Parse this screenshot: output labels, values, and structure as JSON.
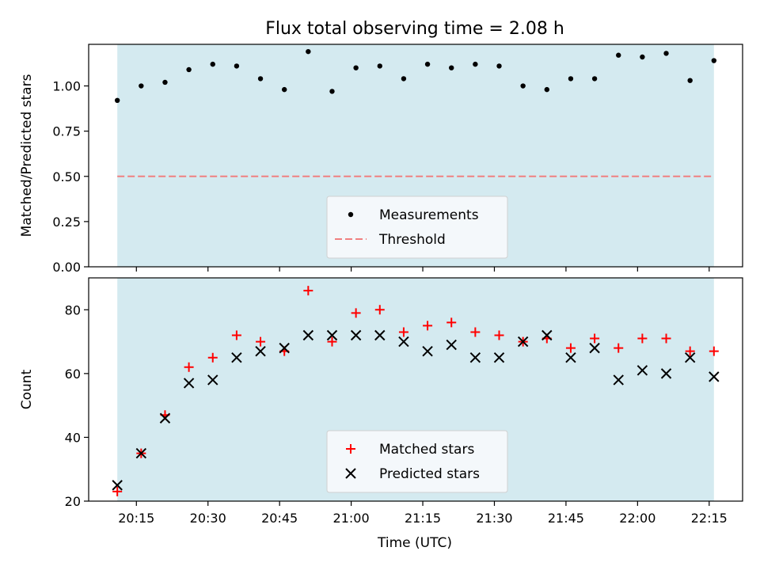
{
  "figure": {
    "title": "Flux total observing time = 2.08 h",
    "xlabel": "Time (UTC)",
    "x_ticks": [
      "20:15",
      "20:30",
      "20:45",
      "21:00",
      "21:15",
      "21:30",
      "21:45",
      "22:00",
      "22:15"
    ],
    "colors": {
      "observing_band": "#d4eaf0",
      "measurement_marker": "#000000",
      "threshold_line": "#f08080",
      "matched_marker": "#ff0000",
      "predicted_marker": "#000000"
    }
  },
  "chart_data": [
    {
      "type": "scatter",
      "ylabel": "Matched/Predicted stars",
      "x_range": [
        "20:05",
        "22:22"
      ],
      "ylim": [
        0.0,
        1.23
      ],
      "y_ticks": [
        "0.00",
        "0.25",
        "0.50",
        "0.75",
        "1.00"
      ],
      "shaded_span": [
        "20:11",
        "22:16"
      ],
      "x": [
        "20:11",
        "20:16",
        "20:21",
        "20:26",
        "20:31",
        "20:36",
        "20:41",
        "20:46",
        "20:51",
        "20:56",
        "21:01",
        "21:06",
        "21:11",
        "21:16",
        "21:21",
        "21:26",
        "21:31",
        "21:36",
        "21:41",
        "21:46",
        "21:51",
        "21:56",
        "22:01",
        "22:06",
        "22:11",
        "22:16"
      ],
      "series": [
        {
          "name": "Measurements",
          "marker": "dot",
          "values": [
            0.92,
            1.0,
            1.02,
            1.09,
            1.12,
            1.11,
            1.04,
            0.98,
            1.19,
            0.97,
            1.1,
            1.11,
            1.04,
            1.12,
            1.1,
            1.12,
            1.11,
            1.0,
            0.98,
            1.04,
            1.04,
            1.17,
            1.16,
            1.18,
            1.03,
            1.14
          ]
        }
      ],
      "threshold": {
        "name": "Threshold",
        "value": 0.5,
        "style": "dashed"
      },
      "legend_placement": "lower center"
    },
    {
      "type": "scatter",
      "ylabel": "Count",
      "x_range": [
        "20:05",
        "22:22"
      ],
      "ylim": [
        20,
        90
      ],
      "y_ticks": [
        "20",
        "40",
        "60",
        "80"
      ],
      "shaded_span": [
        "20:11",
        "22:16"
      ],
      "x": [
        "20:11",
        "20:16",
        "20:21",
        "20:26",
        "20:31",
        "20:36",
        "20:41",
        "20:46",
        "20:51",
        "20:56",
        "21:01",
        "21:06",
        "21:11",
        "21:16",
        "21:21",
        "21:26",
        "21:31",
        "21:36",
        "21:41",
        "21:46",
        "21:51",
        "21:56",
        "22:01",
        "22:06",
        "22:11",
        "22:16"
      ],
      "series": [
        {
          "name": "Matched stars",
          "marker": "plus",
          "values": [
            23,
            35,
            47,
            62,
            65,
            72,
            70,
            67,
            86,
            70,
            79,
            80,
            73,
            75,
            76,
            73,
            72,
            70,
            71,
            68,
            71,
            68,
            71,
            71,
            67,
            67
          ]
        },
        {
          "name": "Predicted stars",
          "marker": "x",
          "values": [
            25,
            35,
            46,
            57,
            58,
            65,
            67,
            68,
            72,
            72,
            72,
            72,
            70,
            67,
            69,
            65,
            65,
            70,
            72,
            65,
            68,
            58,
            61,
            60,
            65,
            59
          ]
        }
      ],
      "legend_placement": "lower center"
    }
  ]
}
